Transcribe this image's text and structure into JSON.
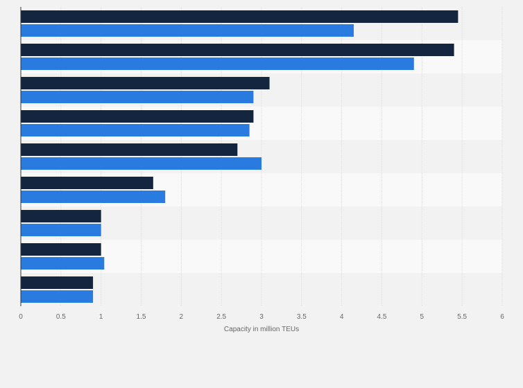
{
  "chart_data": {
    "type": "bar",
    "orientation": "horizontal",
    "categories": [
      "",
      "",
      "",
      "",
      "",
      "",
      "",
      "",
      ""
    ],
    "series": [
      {
        "color": "#14253f",
        "values": [
          5.45,
          5.4,
          3.1,
          2.9,
          2.7,
          1.65,
          1.0,
          1.0,
          0.9
        ]
      },
      {
        "color": "#2a7be0",
        "values": [
          4.15,
          4.9,
          2.9,
          2.85,
          3.0,
          1.8,
          1.0,
          1.04,
          0.9
        ]
      }
    ],
    "xlabel": "Capacity in million TEUs",
    "xlim": [
      0,
      6
    ],
    "xticks": [
      {
        "value": 0,
        "label": "0"
      },
      {
        "value": 0.5,
        "label": "0.5"
      },
      {
        "value": 1,
        "label": "1"
      },
      {
        "value": 1.5,
        "label": "1.5"
      },
      {
        "value": 2,
        "label": "2"
      },
      {
        "value": 2.5,
        "label": "2.5"
      },
      {
        "value": 3,
        "label": "3"
      },
      {
        "value": 3.5,
        "label": "3.5"
      },
      {
        "value": 4,
        "label": "4"
      },
      {
        "value": 4.5,
        "label": "4.5"
      },
      {
        "value": 5,
        "label": "5"
      },
      {
        "value": 5.5,
        "label": "5.5"
      },
      {
        "value": 6,
        "label": "6"
      }
    ],
    "grid": true,
    "band_colors": [
      "#f2f2f2",
      "#f9f9f9"
    ],
    "grid_color": "#dcdcdc"
  }
}
